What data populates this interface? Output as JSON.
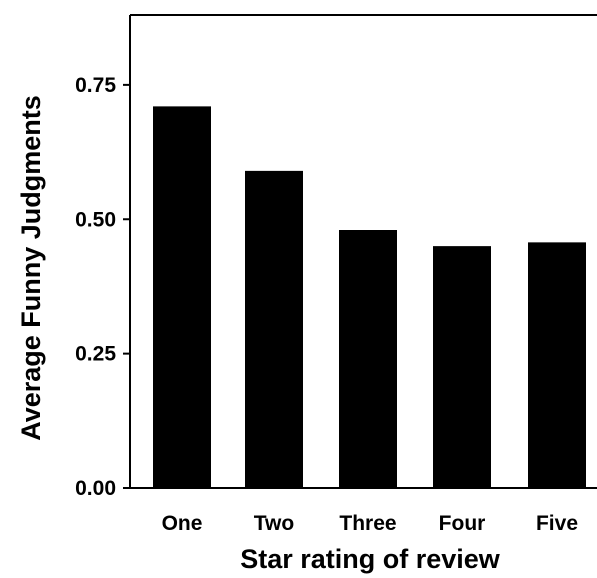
{
  "chart_data": {
    "type": "bar",
    "title": "",
    "xlabel": "Star rating of review",
    "ylabel": "Average Funny Judgments",
    "categories": [
      "One",
      "Two",
      "Three",
      "Four",
      "Five"
    ],
    "values": [
      0.71,
      0.59,
      0.48,
      0.45,
      0.457
    ],
    "ylim": [
      0,
      0.88
    ],
    "yticks": [
      0.0,
      0.25,
      0.5,
      0.75
    ],
    "ytick_labels": [
      "0.00",
      "0.25",
      "0.50",
      "0.75"
    ],
    "bar_color": "#000000",
    "grid": false,
    "legend": "none"
  }
}
